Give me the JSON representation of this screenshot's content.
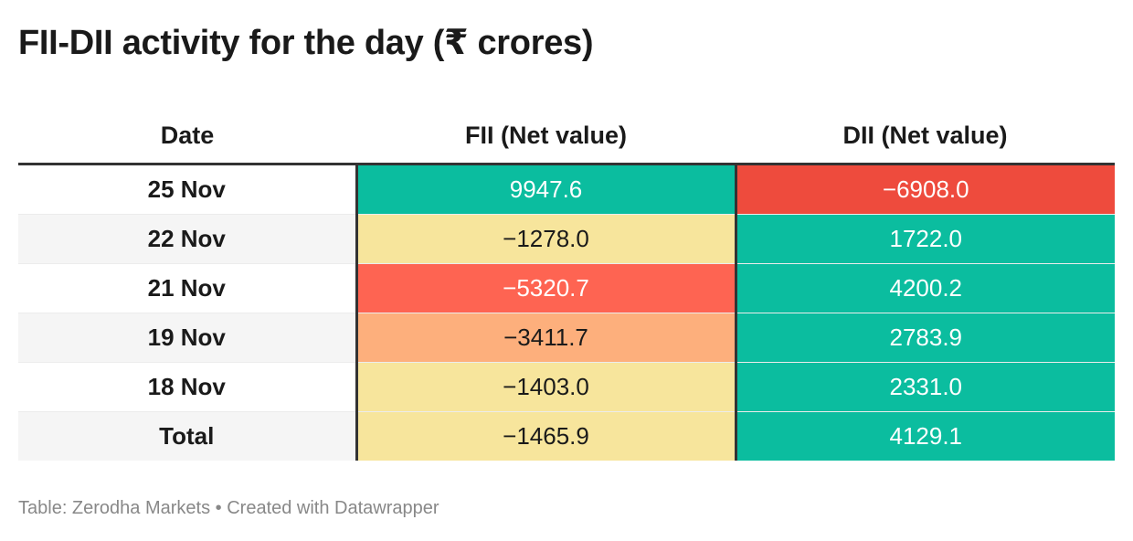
{
  "title": "FII-DII activity for the day (₹ crores)",
  "footer": "Table: Zerodha Markets • Created with Datawrapper",
  "chart_data": {
    "type": "table",
    "columns": [
      "Date",
      "FII (Net value)",
      "DII (Net value)"
    ],
    "rows": [
      {
        "date": "25 Nov",
        "fii": "9947.6",
        "dii": "−6908.0",
        "fii_color": "#0bbd9f",
        "dii_color": "#ee4b3d",
        "fii_text": "#ffffff",
        "dii_text": "#ffffff"
      },
      {
        "date": "22 Nov",
        "fii": "−1278.0",
        "dii": "1722.0",
        "fii_color": "#f7e59c",
        "dii_color": "#0bbd9f",
        "fii_text": "#1a1a1a",
        "dii_text": "#ffffff"
      },
      {
        "date": "21 Nov",
        "fii": "−5320.7",
        "dii": "4200.2",
        "fii_color": "#fe6452",
        "dii_color": "#0bbd9f",
        "fii_text": "#ffffff",
        "dii_text": "#ffffff"
      },
      {
        "date": "19 Nov",
        "fii": "−3411.7",
        "dii": "2783.9",
        "fii_color": "#fdaf7c",
        "dii_color": "#0bbd9f",
        "fii_text": "#1a1a1a",
        "dii_text": "#ffffff"
      },
      {
        "date": "18 Nov",
        "fii": "−1403.0",
        "dii": "2331.0",
        "fii_color": "#f7e59c",
        "dii_color": "#0bbd9f",
        "fii_text": "#1a1a1a",
        "dii_text": "#ffffff"
      },
      {
        "date": "Total",
        "fii": "−1465.9",
        "dii": "4129.1",
        "fii_color": "#f7e59c",
        "dii_color": "#0bbd9f",
        "fii_text": "#1a1a1a",
        "dii_text": "#ffffff"
      }
    ]
  }
}
